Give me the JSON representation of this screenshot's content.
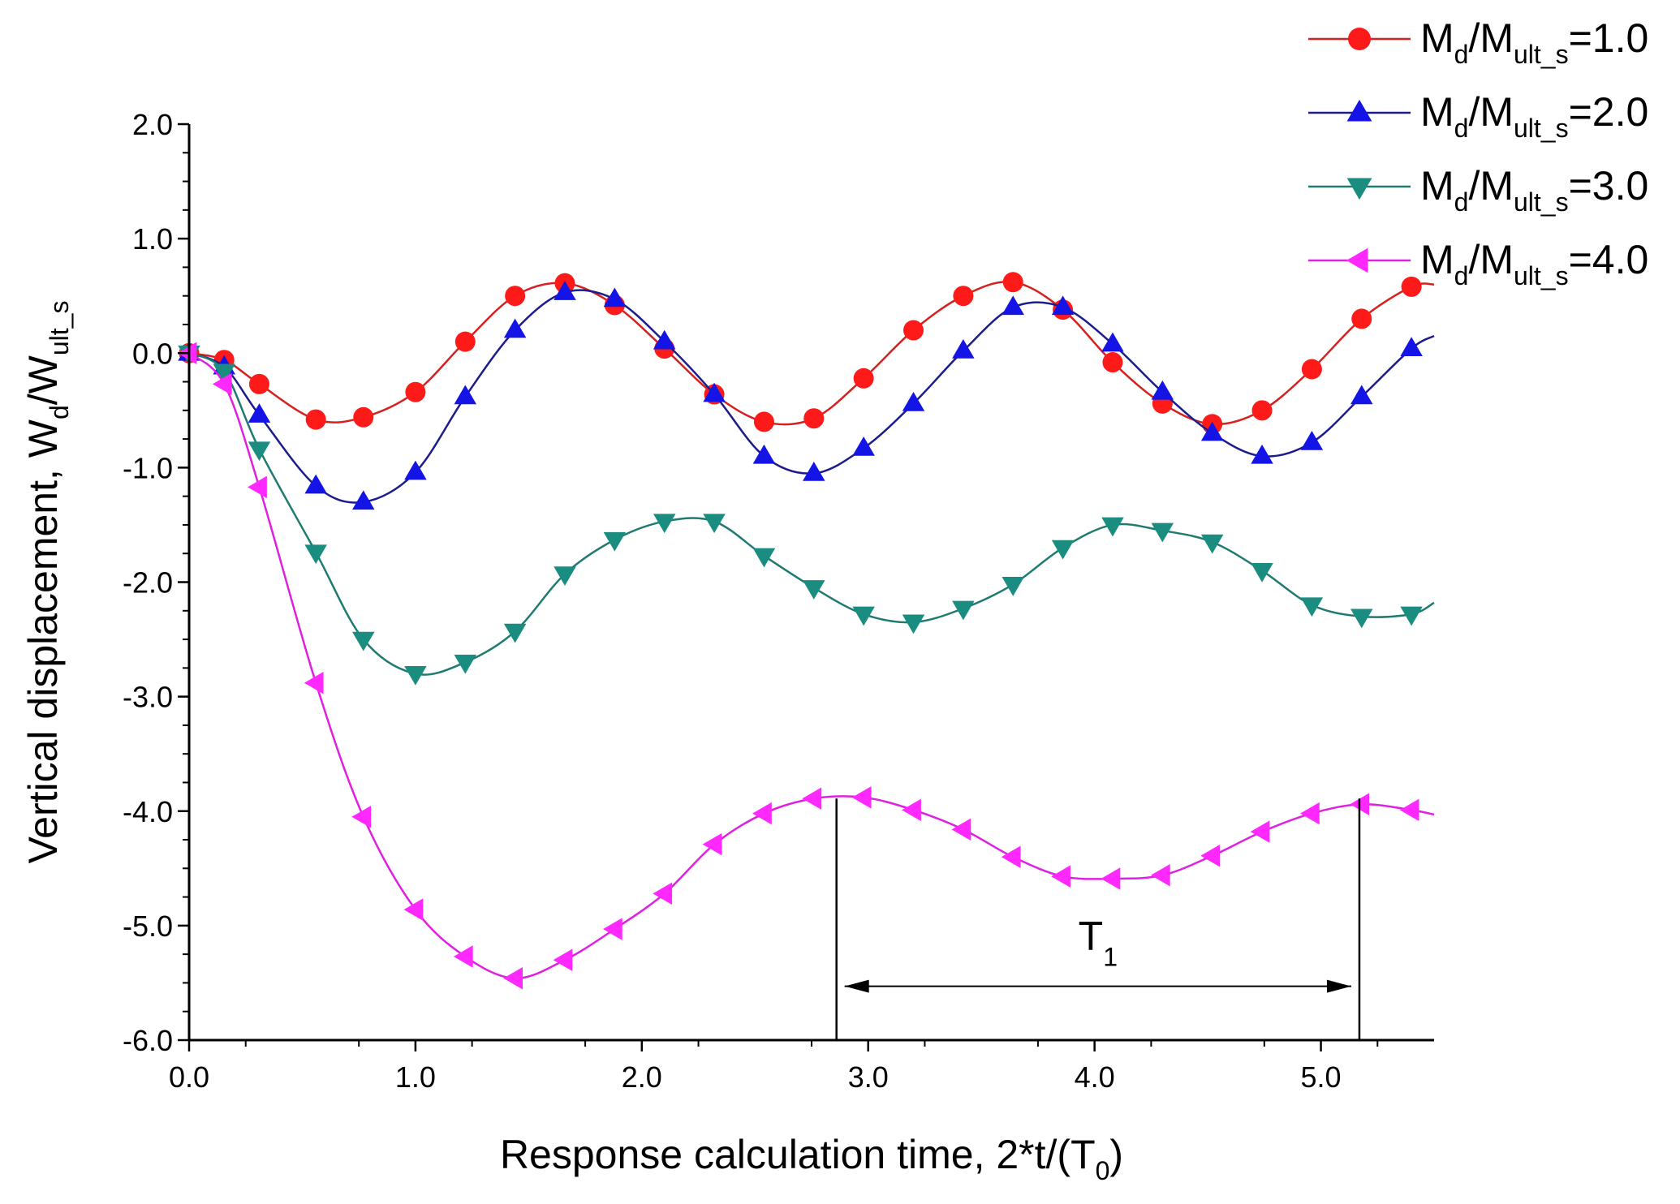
{
  "chart_data": {
    "type": "line",
    "title": "",
    "xlabel": {
      "main": "Response calculation time, 2*t/(T",
      "sub": "0",
      "tail": ")"
    },
    "ylabel": {
      "main": "Vertical displacement, W",
      "sub1": "d",
      "mid": "/W",
      "sub2": "ult_s"
    },
    "xlim": [
      0,
      5.5
    ],
    "ylim": [
      -6,
      2
    ],
    "xticks": [
      0,
      1,
      2,
      3,
      4,
      5
    ],
    "xtick_labels": [
      "0.0",
      "1.0",
      "2.0",
      "3.0",
      "4.0",
      "5.0"
    ],
    "yticks": [
      -6,
      -5,
      -4,
      -3,
      -2,
      -1,
      0,
      1,
      2
    ],
    "ytick_labels": [
      "-6.0",
      "-5.0",
      "-4.0",
      "-3.0",
      "-2.0",
      "-1.0",
      "0.0",
      "1.0",
      "2.0"
    ],
    "legend_position": "top-right",
    "series": [
      {
        "name": "Md/Mult_s=1.0",
        "legend": {
          "a": "M",
          "a_sub": "d",
          "b": "/M",
          "b_sub": "ult_s",
          "c": "=1.0"
        },
        "color": "#d62020",
        "marker_fill": "#ff1a1a",
        "marker": "circle",
        "x": [
          0.0,
          0.155,
          0.31,
          0.56,
          0.77,
          1.0,
          1.22,
          1.44,
          1.66,
          1.88,
          2.1,
          2.32,
          2.54,
          2.76,
          2.98,
          3.2,
          3.42,
          3.64,
          3.86,
          4.08,
          4.3,
          4.52,
          4.74,
          4.96,
          5.18,
          5.4,
          5.5
        ],
        "y": [
          0.0,
          -0.06,
          -0.27,
          -0.58,
          -0.56,
          -0.34,
          0.1,
          0.5,
          0.61,
          0.42,
          0.04,
          -0.36,
          -0.6,
          -0.57,
          -0.22,
          0.2,
          0.5,
          0.62,
          0.38,
          -0.08,
          -0.44,
          -0.62,
          -0.5,
          -0.14,
          0.3,
          0.58,
          0.6
        ]
      },
      {
        "name": "Md/Mult_s=2.0",
        "legend": {
          "a": "M",
          "a_sub": "d",
          "b": "/M",
          "b_sub": "ult_s",
          "c": "=2.0"
        },
        "color": "#1c1c8c",
        "marker_fill": "#1414e6",
        "marker": "triangle-up",
        "x": [
          0.0,
          0.155,
          0.31,
          0.56,
          0.77,
          1.0,
          1.22,
          1.44,
          1.66,
          1.88,
          2.1,
          2.32,
          2.54,
          2.76,
          2.98,
          3.2,
          3.42,
          3.64,
          3.86,
          4.08,
          4.3,
          4.52,
          4.74,
          4.96,
          5.18,
          5.4,
          5.5
        ],
        "y": [
          0.0,
          -0.12,
          -0.54,
          -1.16,
          -1.3,
          -1.04,
          -0.38,
          0.2,
          0.53,
          0.47,
          0.1,
          -0.36,
          -0.9,
          -1.05,
          -0.83,
          -0.44,
          0.02,
          0.4,
          0.4,
          0.08,
          -0.34,
          -0.7,
          -0.9,
          -0.78,
          -0.38,
          0.04,
          0.15
        ]
      },
      {
        "name": "Md/Mult_s=3.0",
        "legend": {
          "a": "M",
          "a_sub": "d",
          "b": "/M",
          "b_sub": "ult_s",
          "c": "=3.0"
        },
        "color": "#1f7a70",
        "marker_fill": "#1a8c80",
        "marker": "triangle-down",
        "x": [
          0.0,
          0.155,
          0.31,
          0.56,
          0.77,
          1.0,
          1.22,
          1.44,
          1.66,
          1.88,
          2.1,
          2.32,
          2.54,
          2.76,
          2.98,
          3.2,
          3.42,
          3.64,
          3.86,
          4.08,
          4.3,
          4.52,
          4.74,
          4.96,
          5.18,
          5.4,
          5.5
        ],
        "y": [
          0.0,
          -0.16,
          -0.84,
          -1.74,
          -2.5,
          -2.8,
          -2.7,
          -2.43,
          -1.93,
          -1.63,
          -1.47,
          -1.47,
          -1.77,
          -2.05,
          -2.28,
          -2.35,
          -2.23,
          -2.02,
          -1.7,
          -1.5,
          -1.55,
          -1.65,
          -1.9,
          -2.2,
          -2.3,
          -2.28,
          -2.18
        ]
      },
      {
        "name": "Md/Mult_s=4.0",
        "legend": {
          "a": "M",
          "a_sub": "d",
          "b": "/M",
          "b_sub": "ult_s",
          "c": "=4.0"
        },
        "color": "#e020e0",
        "marker_fill": "#ff28ff",
        "marker": "triangle-left",
        "x": [
          0.0,
          0.155,
          0.31,
          0.56,
          0.77,
          1.0,
          1.22,
          1.44,
          1.66,
          1.88,
          2.1,
          2.32,
          2.54,
          2.76,
          2.98,
          3.2,
          3.42,
          3.64,
          3.86,
          4.08,
          4.3,
          4.52,
          4.74,
          4.96,
          5.18,
          5.4,
          5.5
        ],
        "y": [
          0.0,
          -0.27,
          -1.17,
          -2.88,
          -4.05,
          -4.86,
          -5.27,
          -5.46,
          -5.3,
          -5.03,
          -4.72,
          -4.29,
          -4.02,
          -3.89,
          -3.88,
          -3.99,
          -4.16,
          -4.4,
          -4.57,
          -4.59,
          -4.56,
          -4.39,
          -4.18,
          -4.02,
          -3.94,
          -3.99,
          -4.03
        ]
      }
    ],
    "annotations": [
      {
        "type": "period-arrow",
        "label": "T",
        "label_sub": "1",
        "x_start": 2.86,
        "x_end": 5.17,
        "y_arrow": -5.53,
        "y_top": -3.89,
        "y_bottom": -6.0
      }
    ]
  }
}
